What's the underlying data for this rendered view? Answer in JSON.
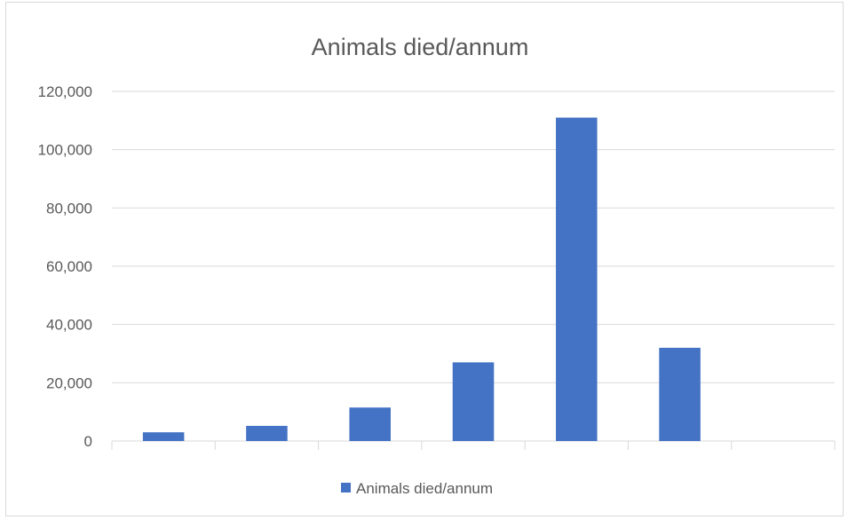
{
  "chart_data": {
    "type": "bar",
    "title": "Animals died/annum",
    "xlabel": "",
    "ylabel": "",
    "categories": [
      "",
      "",
      "",
      "",
      "",
      "",
      ""
    ],
    "series": [
      {
        "name": "Animals died/annum",
        "color": "#4472c4",
        "values": [
          3000,
          5200,
          11500,
          27000,
          111000,
          32000,
          0
        ]
      }
    ],
    "ylim": [
      0,
      120000
    ],
    "yticks": [
      0,
      20000,
      40000,
      60000,
      80000,
      100000,
      120000
    ],
    "ytick_labels": [
      "0",
      "20,000",
      "40,000",
      "60,000",
      "80,000",
      "100,000",
      "120,000"
    ],
    "grid": true,
    "legend_position": "bottom"
  }
}
